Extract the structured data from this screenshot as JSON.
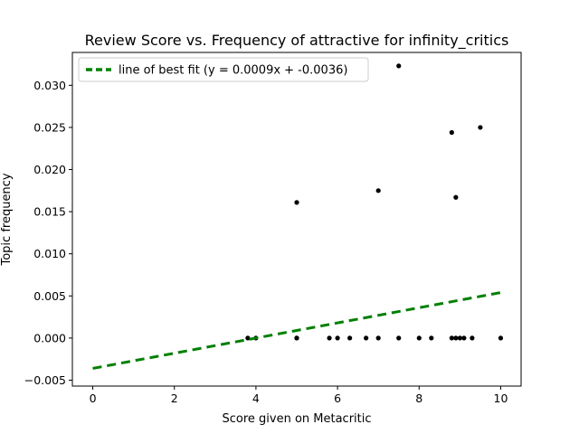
{
  "chart_data": {
    "type": "scatter",
    "title": "Review Score vs. Frequency of attractive for infinity_critics",
    "xlabel": "Score given on Metacritic",
    "ylabel": "Topic frequency",
    "xlim": [
      -0.5,
      10.5
    ],
    "ylim": [
      -0.0057,
      0.0339
    ],
    "xticks": [
      0,
      2,
      4,
      6,
      8,
      10
    ],
    "xtick_labels": [
      "0",
      "2",
      "4",
      "6",
      "8",
      "10"
    ],
    "yticks": [
      -0.005,
      0.0,
      0.005,
      0.01,
      0.015,
      0.02,
      0.025,
      0.03
    ],
    "ytick_labels": [
      "−0.005",
      "0.000",
      "0.005",
      "0.010",
      "0.015",
      "0.020",
      "0.025",
      "0.030"
    ],
    "grid": false,
    "legend_position": "top-left",
    "point_color": "#000000",
    "points": [
      {
        "x": 3.8,
        "y": 0.0
      },
      {
        "x": 4.0,
        "y": 0.0
      },
      {
        "x": 5.0,
        "y": 0.0
      },
      {
        "x": 5.0,
        "y": 0.0
      },
      {
        "x": 5.0,
        "y": 0.0161
      },
      {
        "x": 5.8,
        "y": 0.0
      },
      {
        "x": 6.0,
        "y": 0.0
      },
      {
        "x": 6.3,
        "y": 0.0
      },
      {
        "x": 6.7,
        "y": 0.0
      },
      {
        "x": 7.0,
        "y": 0.0
      },
      {
        "x": 7.0,
        "y": 0.0175
      },
      {
        "x": 7.5,
        "y": 0.0
      },
      {
        "x": 7.5,
        "y": 0.0323
      },
      {
        "x": 8.0,
        "y": 0.0
      },
      {
        "x": 8.3,
        "y": 0.0
      },
      {
        "x": 8.8,
        "y": 0.0
      },
      {
        "x": 8.8,
        "y": 0.0244
      },
      {
        "x": 8.9,
        "y": 0.0
      },
      {
        "x": 8.9,
        "y": 0.0167
      },
      {
        "x": 9.0,
        "y": 0.0
      },
      {
        "x": 9.1,
        "y": 0.0
      },
      {
        "x": 9.3,
        "y": 0.0
      },
      {
        "x": 9.5,
        "y": 0.025
      },
      {
        "x": 10.0,
        "y": 0.0
      }
    ],
    "fit_line": {
      "label": "line of best fit (y = 0.0009x + -0.0036)",
      "slope": 0.0009,
      "intercept": -0.0036,
      "x_range": [
        0,
        10
      ],
      "color": "#008000",
      "style": "dashed"
    }
  }
}
